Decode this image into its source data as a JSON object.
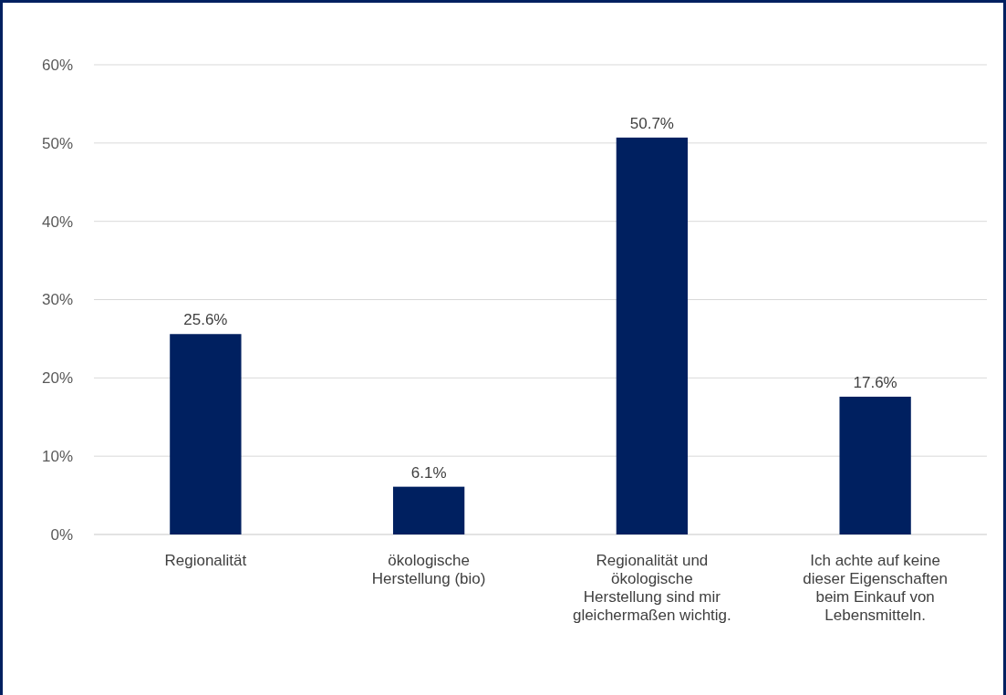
{
  "chart_data": {
    "type": "bar",
    "categories": [
      "Regionalität",
      "ökologische Herstellung (bio)",
      "Regionalität und ökologische Herstellung sind mir gleichermaßen wichtig.",
      "Ich achte auf keine dieser Eigenschaften beim Einkauf von Lebensmitteln."
    ],
    "values": [
      25.6,
      6.1,
      50.7,
      17.6
    ],
    "color": "#002060",
    "value_labels": [
      "25.6%",
      "6.1%",
      "50.7%",
      "17.6%"
    ],
    "ylim": [
      0,
      60
    ],
    "yticks": [
      {
        "value": 0,
        "label": "0%"
      },
      {
        "value": 10,
        "label": "10%"
      },
      {
        "value": 20,
        "label": "20%"
      },
      {
        "value": 30,
        "label": "30%"
      },
      {
        "value": 40,
        "label": "40%"
      },
      {
        "value": 50,
        "label": "50%"
      },
      {
        "value": 60,
        "label": "60%"
      }
    ],
    "grid": "y"
  }
}
